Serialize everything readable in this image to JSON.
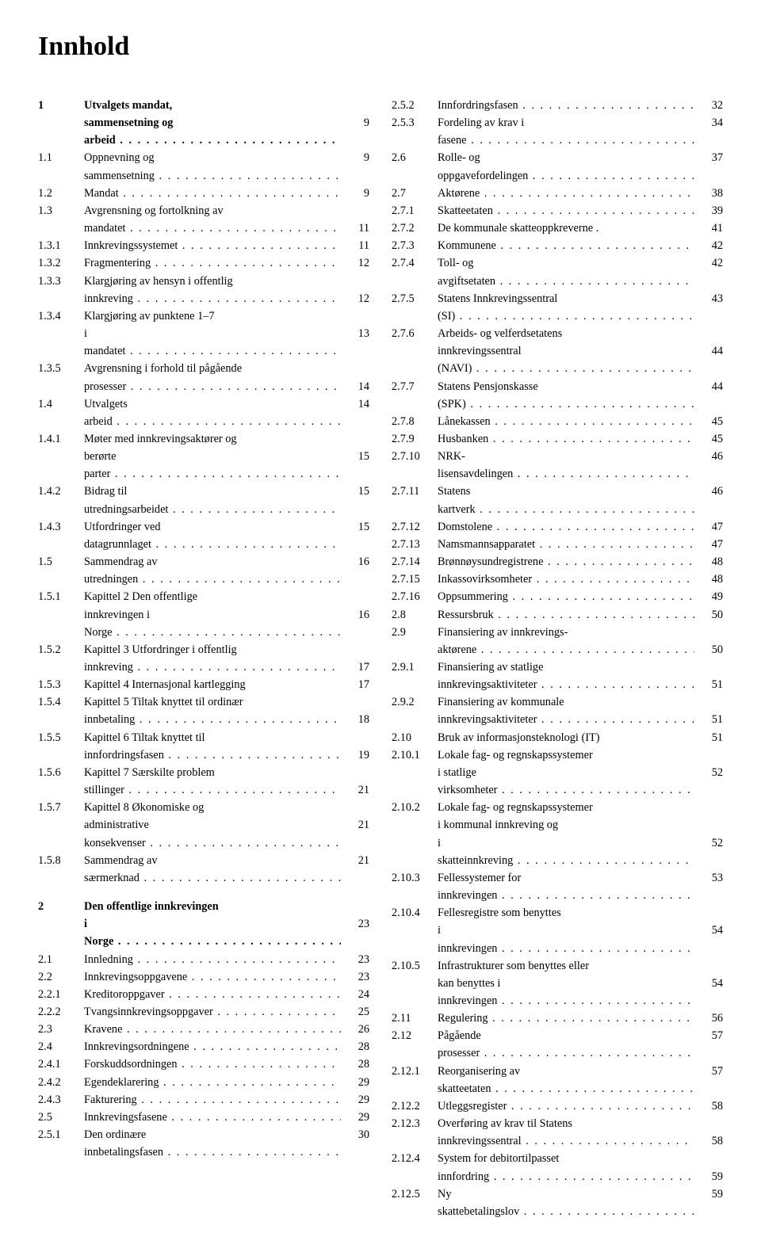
{
  "title": "Innhold",
  "left": [
    {
      "id": "c1-num",
      "num": "1",
      "bold": true,
      "text": "Utvalgets mandat,",
      "noleader": true,
      "page": ""
    },
    {
      "id": "c1-cont",
      "num": "",
      "bold": true,
      "text": "sammensetning og arbeid",
      "page": "9"
    },
    {
      "id": "c1-1",
      "num": "1.1",
      "text": "Oppnevning og sammensetning",
      "page": "9"
    },
    {
      "id": "c1-2",
      "num": "1.2",
      "text": "Mandat",
      "page": "9"
    },
    {
      "id": "c1-3",
      "num": "1.3",
      "text": "Avgrensning og fortolkning av",
      "noleader": true,
      "page": ""
    },
    {
      "id": "c1-3c",
      "num": "",
      "text": "mandatet",
      "page": "11"
    },
    {
      "id": "c1-3-1",
      "num": "1.3.1",
      "text": "Innkrevingssystemet",
      "page": "11"
    },
    {
      "id": "c1-3-2",
      "num": "1.3.2",
      "text": "Fragmentering",
      "page": "12"
    },
    {
      "id": "c1-3-3",
      "num": "1.3.3",
      "text": "Klargjøring av hensyn i offentlig",
      "noleader": true,
      "page": ""
    },
    {
      "id": "c1-3-3c",
      "num": "",
      "text": "innkreving",
      "page": "12"
    },
    {
      "id": "c1-3-4",
      "num": "1.3.4",
      "text": "Klargjøring av punktene 1–7",
      "noleader": true,
      "page": ""
    },
    {
      "id": "c1-3-4c",
      "num": "",
      "text": "i mandatet",
      "page": "13"
    },
    {
      "id": "c1-3-5",
      "num": "1.3.5",
      "text": "Avgrensning i forhold til pågående",
      "noleader": true,
      "page": ""
    },
    {
      "id": "c1-3-5c",
      "num": "",
      "text": "prosesser",
      "page": "14"
    },
    {
      "id": "c1-4",
      "num": "1.4",
      "text": "Utvalgets arbeid",
      "page": "14"
    },
    {
      "id": "c1-4-1",
      "num": "1.4.1",
      "text": "Møter med innkrevingsaktører og",
      "noleader": true,
      "page": ""
    },
    {
      "id": "c1-4-1c",
      "num": "",
      "text": "berørte parter",
      "page": "15"
    },
    {
      "id": "c1-4-2",
      "num": "1.4.2",
      "text": "Bidrag til utredningsarbeidet",
      "page": "15"
    },
    {
      "id": "c1-4-3",
      "num": "1.4.3",
      "text": "Utfordringer ved datagrunnlaget",
      "page": "15"
    },
    {
      "id": "c1-5",
      "num": "1.5",
      "text": "Sammendrag av utredningen",
      "page": "16"
    },
    {
      "id": "c1-5-1",
      "num": "1.5.1",
      "text": "Kapittel 2 Den offentlige",
      "noleader": true,
      "page": ""
    },
    {
      "id": "c1-5-1c",
      "num": "",
      "text": "innkrevingen i Norge",
      "page": "16"
    },
    {
      "id": "c1-5-2",
      "num": "1.5.2",
      "text": "Kapittel 3 Utfordringer i offentlig",
      "noleader": true,
      "page": ""
    },
    {
      "id": "c1-5-2c",
      "num": "",
      "text": "innkreving",
      "page": "17"
    },
    {
      "id": "c1-5-3",
      "num": "1.5.3",
      "text": "Kapittel 4 Internasjonal kartlegging",
      "noleader": true,
      "page": "17"
    },
    {
      "id": "c1-5-4",
      "num": "1.5.4",
      "text": "Kapittel 5 Tiltak knyttet til ordinær",
      "noleader": true,
      "page": ""
    },
    {
      "id": "c1-5-4c",
      "num": "",
      "text": "innbetaling",
      "page": "18"
    },
    {
      "id": "c1-5-5",
      "num": "1.5.5",
      "text": "Kapittel 6 Tiltak knyttet til",
      "noleader": true,
      "page": ""
    },
    {
      "id": "c1-5-5c",
      "num": "",
      "text": "innfordringsfasen",
      "page": "19"
    },
    {
      "id": "c1-5-6",
      "num": "1.5.6",
      "text": "Kapittel 7 Særskilte problem",
      "noleader": true,
      "page": ""
    },
    {
      "id": "c1-5-6c",
      "num": "",
      "text": "stillinger",
      "page": "21"
    },
    {
      "id": "c1-5-7",
      "num": "1.5.7",
      "text": "Kapittel 8 Økonomiske og",
      "noleader": true,
      "page": ""
    },
    {
      "id": "c1-5-7c",
      "num": "",
      "text": "administrative konsekvenser",
      "page": "21"
    },
    {
      "id": "c1-5-8",
      "num": "1.5.8",
      "text": "Sammendrag av særmerknad",
      "page": "21"
    },
    {
      "id": "sp1",
      "spacer": true
    },
    {
      "id": "c2",
      "num": "2",
      "bold": true,
      "text": "Den offentlige innkrevingen",
      "noleader": true,
      "page": ""
    },
    {
      "id": "c2c",
      "num": "",
      "bold": true,
      "text": "i Norge",
      "page": "23"
    },
    {
      "id": "c2-1",
      "num": "2.1",
      "text": "Innledning",
      "page": "23"
    },
    {
      "id": "c2-2",
      "num": "2.2",
      "text": "Innkrevingsoppgavene",
      "page": "23"
    },
    {
      "id": "c2-2-1",
      "num": "2.2.1",
      "text": "Kreditoroppgaver",
      "page": "24"
    },
    {
      "id": "c2-2-2",
      "num": "2.2.2",
      "text": "Tvangsinnkrevingsoppgaver",
      "page": "25"
    },
    {
      "id": "c2-3",
      "num": "2.3",
      "text": "Kravene",
      "page": "26"
    },
    {
      "id": "c2-4",
      "num": "2.4",
      "text": "Innkrevingsordningene",
      "page": "28"
    },
    {
      "id": "c2-4-1",
      "num": "2.4.1",
      "text": "Forskuddsordningen",
      "page": "28"
    },
    {
      "id": "c2-4-2",
      "num": "2.4.2",
      "text": "Egendeklarering",
      "page": "29"
    },
    {
      "id": "c2-4-3",
      "num": "2.4.3",
      "text": "Fakturering",
      "page": "29"
    },
    {
      "id": "c2-5",
      "num": "2.5",
      "text": "Innkrevingsfasene",
      "page": "29"
    },
    {
      "id": "c2-5-1",
      "num": "2.5.1",
      "text": "Den ordinære innbetalingsfasen",
      "page": "30"
    }
  ],
  "right": [
    {
      "id": "r2-5-2",
      "num": "2.5.2",
      "text": "Innfordringsfasen",
      "page": "32"
    },
    {
      "id": "r2-5-3",
      "num": "2.5.3",
      "text": "Fordeling av krav i fasene",
      "page": "34"
    },
    {
      "id": "r2-6",
      "num": "2.6",
      "text": "Rolle- og oppgavefordelingen",
      "page": "37"
    },
    {
      "id": "r2-7",
      "num": "2.7",
      "text": "Aktørene",
      "page": "38"
    },
    {
      "id": "r2-7-1",
      "num": "2.7.1",
      "text": "Skatteetaten",
      "page": "39"
    },
    {
      "id": "r2-7-2",
      "num": "2.7.2",
      "text": "De kommunale skatteoppkreverne .",
      "noleader": true,
      "page": "41"
    },
    {
      "id": "r2-7-3",
      "num": "2.7.3",
      "text": "Kommunene",
      "page": "42"
    },
    {
      "id": "r2-7-4",
      "num": "2.7.4",
      "text": "Toll- og avgiftsetaten",
      "page": "42"
    },
    {
      "id": "r2-7-5",
      "num": "2.7.5",
      "text": "Statens Innkrevingssentral (SI)",
      "page": "43"
    },
    {
      "id": "r2-7-6",
      "num": "2.7.6",
      "text": "Arbeids- og velferdsetatens",
      "noleader": true,
      "page": ""
    },
    {
      "id": "r2-7-6c",
      "num": "",
      "text": "innkrevingssentral (NAVI)",
      "page": "44"
    },
    {
      "id": "r2-7-7",
      "num": "2.7.7",
      "text": "Statens Pensjonskasse (SPK)",
      "page": "44"
    },
    {
      "id": "r2-7-8",
      "num": "2.7.8",
      "text": "Lånekassen",
      "page": "45"
    },
    {
      "id": "r2-7-9",
      "num": "2.7.9",
      "text": "Husbanken",
      "page": "45"
    },
    {
      "id": "r2-7-10",
      "num": "2.7.10",
      "text": "NRK-lisensavdelingen",
      "page": "46"
    },
    {
      "id": "r2-7-11",
      "num": "2.7.11",
      "text": "Statens kartverk",
      "page": "46"
    },
    {
      "id": "r2-7-12",
      "num": "2.7.12",
      "text": "Domstolene",
      "page": "47"
    },
    {
      "id": "r2-7-13",
      "num": "2.7.13",
      "text": "Namsmannsapparatet",
      "page": "47"
    },
    {
      "id": "r2-7-14",
      "num": "2.7.14",
      "text": "Brønnøysundregistrene",
      "page": "48"
    },
    {
      "id": "r2-7-15",
      "num": "2.7.15",
      "text": "Inkassovirksomheter",
      "page": "48"
    },
    {
      "id": "r2-7-16",
      "num": "2.7.16",
      "text": "Oppsummering",
      "page": "49"
    },
    {
      "id": "r2-8",
      "num": "2.8",
      "text": "Ressursbruk",
      "page": "50"
    },
    {
      "id": "r2-9",
      "num": "2.9",
      "text": "Finansiering av innkrevings-",
      "noleader": true,
      "page": ""
    },
    {
      "id": "r2-9c",
      "num": "",
      "text": "aktørene",
      "page": "50"
    },
    {
      "id": "r2-9-1",
      "num": "2.9.1",
      "text": "Finansiering av statlige",
      "noleader": true,
      "page": ""
    },
    {
      "id": "r2-9-1c",
      "num": "",
      "text": "innkrevingsaktiviteter",
      "page": "51"
    },
    {
      "id": "r2-9-2",
      "num": "2.9.2",
      "text": "Finansiering av kommunale",
      "noleader": true,
      "page": ""
    },
    {
      "id": "r2-9-2c",
      "num": "",
      "text": "innkrevingsaktiviteter",
      "page": "51"
    },
    {
      "id": "r2-10",
      "num": "2.10",
      "text": "Bruk av informasjonsteknologi (IT)",
      "noleader": true,
      "page": "51"
    },
    {
      "id": "r2-10-1",
      "num": "2.10.1",
      "text": "Lokale fag- og regnskapssystemer",
      "noleader": true,
      "page": ""
    },
    {
      "id": "r2-10-1c",
      "num": "",
      "text": "i statlige virksomheter",
      "page": "52"
    },
    {
      "id": "r2-10-2",
      "num": "2.10.2",
      "text": "Lokale fag- og regnskapssystemer",
      "noleader": true,
      "page": ""
    },
    {
      "id": "r2-10-2c",
      "num": "",
      "text": "i kommunal innkreving og",
      "noleader": true,
      "page": ""
    },
    {
      "id": "r2-10-2c2",
      "num": "",
      "text": "i skatteinnkreving",
      "page": "52"
    },
    {
      "id": "r2-10-3",
      "num": "2.10.3",
      "text": "Fellessystemer for innkrevingen",
      "page": "53"
    },
    {
      "id": "r2-10-4",
      "num": "2.10.4",
      "text": "Fellesregistre som benyttes",
      "noleader": true,
      "page": ""
    },
    {
      "id": "r2-10-4c",
      "num": "",
      "text": "i innkrevingen",
      "page": "54"
    },
    {
      "id": "r2-10-5",
      "num": "2.10.5",
      "text": "Infrastrukturer som benyttes eller",
      "noleader": true,
      "page": ""
    },
    {
      "id": "r2-10-5c",
      "num": "",
      "text": "kan benyttes i innkrevingen",
      "page": "54"
    },
    {
      "id": "r2-11",
      "num": "2.11",
      "text": "Regulering",
      "page": "56"
    },
    {
      "id": "r2-12",
      "num": "2.12",
      "text": "Pågående prosesser",
      "page": "57"
    },
    {
      "id": "r2-12-1",
      "num": "2.12.1",
      "text": "Reorganisering av skatteetaten",
      "page": "57"
    },
    {
      "id": "r2-12-2",
      "num": "2.12.2",
      "text": "Utleggsregister",
      "page": "58"
    },
    {
      "id": "r2-12-3",
      "num": "2.12.3",
      "text": "Overføring av krav til Statens",
      "noleader": true,
      "page": ""
    },
    {
      "id": "r2-12-3c",
      "num": "",
      "text": "innkrevingssentral",
      "page": "58"
    },
    {
      "id": "r2-12-4",
      "num": "2.12.4",
      "text": "System for debitortilpasset",
      "noleader": true,
      "page": ""
    },
    {
      "id": "r2-12-4c",
      "num": "",
      "text": "innfordring",
      "page": "59"
    },
    {
      "id": "r2-12-5",
      "num": "2.12.5",
      "text": "Ny skattebetalingslov",
      "page": "59"
    }
  ]
}
